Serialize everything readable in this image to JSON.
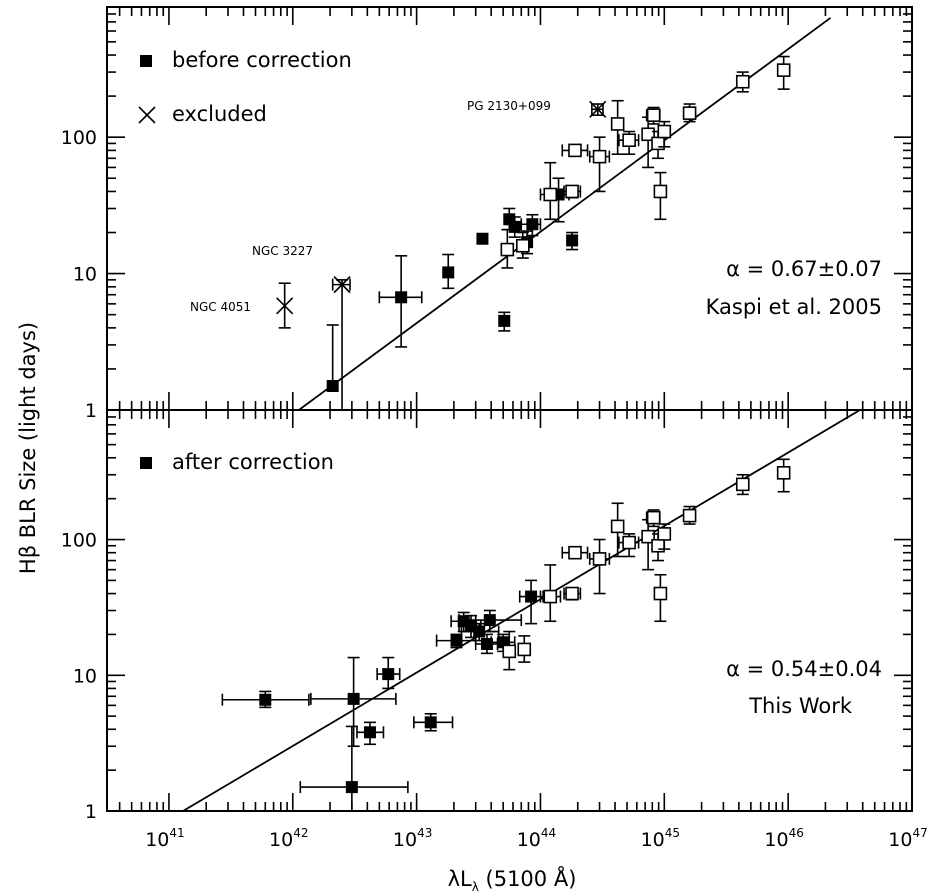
{
  "chart_data": [
    {
      "type": "scatter",
      "panel": "top",
      "x_scale": "log",
      "y_scale": "log",
      "xlim": [
        3e+40,
        1e+47
      ],
      "ylim": [
        1,
        900
      ],
      "legend": [
        {
          "marker": "filled-square",
          "label": "before correction"
        },
        {
          "marker": "cross",
          "label": "excluded"
        }
      ],
      "annotation_alpha": "α = 0.67±0.07",
      "annotation_ref": "Kaspi et al. 2005",
      "fit_line": {
        "x": [
          1.12e+42,
          2.2e+46
        ],
        "y": [
          1,
          750
        ]
      },
      "series": [
        {
          "marker": "filled-square",
          "points": [
            {
              "x": 2.1e+42,
              "y": 1.5,
              "ylo": 1.4,
              "yhi": 4.2
            },
            {
              "x": 7.5e+42,
              "y": 6.7,
              "ylo": 2.9,
              "yhi": 13.5,
              "xlo": 5e+42,
              "xhi": 1.1e+43
            },
            {
              "x": 1.8e+43,
              "y": 10.2,
              "ylo": 7.8,
              "yhi": 13.8
            },
            {
              "x": 3.4e+43,
              "y": 18.0
            },
            {
              "x": 5.1e+43,
              "y": 4.5,
              "ylo": 3.8,
              "yhi": 5.2
            },
            {
              "x": 5.6e+43,
              "y": 25.0,
              "ylo": 21.0,
              "yhi": 30.0
            },
            {
              "x": 6.2e+43,
              "y": 22.0,
              "ylo": 18.5,
              "yhi": 26.0
            },
            {
              "x": 7.8e+43,
              "y": 17.0,
              "ylo": 14.0,
              "yhi": 20.5
            },
            {
              "x": 8.6e+43,
              "y": 23.0,
              "ylo": 19.0,
              "yhi": 27.0,
              "xlo": 7e+43,
              "xhi": 1e+44
            },
            {
              "x": 1.4e+44,
              "y": 38.0,
              "ylo": 24.0,
              "yhi": 50.0,
              "xlo": 1.1e+44,
              "xhi": 1.7e+44
            },
            {
              "x": 1.8e+44,
              "y": 17.5,
              "ylo": 15.0,
              "yhi": 20.0
            }
          ]
        },
        {
          "marker": "open-square",
          "points": [
            {
              "x": 5.4e+43,
              "y": 15.0,
              "ylo": 11.0,
              "yhi": 21.0
            },
            {
              "x": 7.2e+43,
              "y": 16.0,
              "ylo": 13.0,
              "yhi": 20.0
            },
            {
              "x": 1.2e+44,
              "y": 38.0,
              "ylo": 25.0,
              "yhi": 65.0,
              "xlo": 1e+44,
              "xhi": 1.45e+44
            },
            {
              "x": 1.8e+44,
              "y": 40.0,
              "ylo": 36.0,
              "yhi": 44.0,
              "xlo": 1.55e+44,
              "xhi": 2.1e+44
            },
            {
              "x": 1.9e+44,
              "y": 80.0,
              "ylo": 75.0,
              "yhi": 85.0,
              "xlo": 1.5e+44,
              "xhi": 2.4e+44
            },
            {
              "x": 3e+44,
              "y": 72.0,
              "ylo": 40.0,
              "yhi": 100.0,
              "xlo": 2.5e+44,
              "xhi": 3.6e+44
            },
            {
              "x": 4.2e+44,
              "y": 125.0,
              "ylo": 75.0,
              "yhi": 185.0
            },
            {
              "x": 5.2e+44,
              "y": 95.0,
              "ylo": 75.0,
              "yhi": 110.0,
              "xlo": 4.3e+44,
              "xhi": 6.2e+44
            },
            {
              "x": 7.4e+44,
              "y": 105.0,
              "ylo": 60.0,
              "yhi": 140.0
            },
            {
              "x": 8.2e+44,
              "y": 145.0,
              "ylo": 125.0,
              "yhi": 165.0,
              "xlo": 7.2e+44,
              "xhi": 9.2e+44
            },
            {
              "x": 8.9e+44,
              "y": 90.0,
              "ylo": 70.0,
              "yhi": 110.0
            },
            {
              "x": 9.3e+44,
              "y": 40.0,
              "ylo": 25.0,
              "yhi": 55.0
            },
            {
              "x": 1e+45,
              "y": 110.0,
              "ylo": 85.0,
              "yhi": 130.0
            },
            {
              "x": 1.6e+45,
              "y": 150.0,
              "ylo": 130.0,
              "yhi": 175.0
            },
            {
              "x": 4.3e+45,
              "y": 255.0,
              "ylo": 215.0,
              "yhi": 300.0
            },
            {
              "x": 9.2e+45,
              "y": 310.0,
              "ylo": 225.0,
              "yhi": 390.0
            }
          ]
        },
        {
          "marker": "cross",
          "points": [
            {
              "label": "NGC 4051",
              "x": 8.6e+41,
              "y": 5.8,
              "ylo": 4.0,
              "yhi": 8.5
            },
            {
              "label": "NGC 3227",
              "x": 2.5e+42,
              "y": 8.3,
              "ylo": 1.0,
              "yhi": 9.0,
              "xlo": 2.1e+42,
              "xhi": 2.9e+42
            },
            {
              "label": "PG 2130+099",
              "x": 2.9e+44,
              "y": 160.0,
              "ylo": 145.0,
              "yhi": 175.0,
              "xlo": 2.6e+44,
              "xhi": 3.2e+44
            }
          ]
        }
      ]
    },
    {
      "type": "scatter",
      "panel": "bottom",
      "x_scale": "log",
      "y_scale": "log",
      "xlim": [
        3e+40,
        1e+47
      ],
      "ylim": [
        1,
        900
      ],
      "legend": [
        {
          "marker": "filled-square",
          "label": "after correction"
        }
      ],
      "annotation_alpha": "α = 0.54±0.04",
      "annotation_ref": "This Work",
      "fit_line": {
        "x": [
          1.3e+41,
          3.8e+46
        ],
        "y": [
          1,
          900
        ]
      },
      "series": [
        {
          "marker": "filled-square",
          "points": [
            {
              "x": 6e+41,
              "y": 6.6,
              "ylo": 5.8,
              "yhi": 7.6,
              "xlo": 2.7e+41,
              "xhi": 1.35e+42
            },
            {
              "x": 3e+42,
              "y": 1.5,
              "ylo": 1.0,
              "yhi": 4.2,
              "xlo": 1.15e+42,
              "xhi": 8.5e+42
            },
            {
              "x": 3.1e+42,
              "y": 6.7,
              "ylo": 3.0,
              "yhi": 13.5,
              "xlo": 1.4e+42,
              "xhi": 6.8e+42
            },
            {
              "x": 4.2e+42,
              "y": 3.8,
              "ylo": 3.1,
              "yhi": 4.5,
              "xlo": 3.3e+42,
              "xhi": 5.4e+42
            },
            {
              "x": 5.9e+42,
              "y": 10.2,
              "ylo": 8.0,
              "yhi": 13.5,
              "xlo": 4.8e+42,
              "xhi": 7.3e+42
            },
            {
              "x": 1.3e+43,
              "y": 4.5,
              "ylo": 3.9,
              "yhi": 5.2,
              "xlo": 9.5e+42,
              "xhi": 1.95e+43
            },
            {
              "x": 2.1e+43,
              "y": 18.0,
              "ylo": 16.0,
              "yhi": 20.0,
              "xlo": 1.45e+43,
              "xhi": 3e+43
            },
            {
              "x": 2.4e+43,
              "y": 25.0,
              "ylo": 21.0,
              "yhi": 29.0,
              "xlo": 1.9e+43,
              "xhi": 3e+43
            },
            {
              "x": 2.75e+43,
              "y": 23.0,
              "ylo": 19.0,
              "yhi": 27.5,
              "xlo": 2.2e+43,
              "xhi": 3.3e+43
            },
            {
              "x": 3.2e+43,
              "y": 21.0,
              "ylo": 18.0,
              "yhi": 24.0,
              "xlo": 2.3e+43,
              "xhi": 4.6e+43
            },
            {
              "x": 3.7e+43,
              "y": 17.0,
              "ylo": 14.5,
              "yhi": 20.0,
              "xlo": 3e+43,
              "xhi": 4.5e+43
            },
            {
              "x": 3.9e+43,
              "y": 25.5,
              "ylo": 21.0,
              "yhi": 30.0,
              "xlo": 2.2e+43,
              "xhi": 7e+43
            },
            {
              "x": 5e+43,
              "y": 17.5,
              "ylo": 15.0,
              "yhi": 20.0,
              "xlo": 4e+43,
              "xhi": 6.2e+43
            },
            {
              "x": 8.4e+43,
              "y": 38.0,
              "ylo": 24.0,
              "yhi": 50.0,
              "xlo": 6.8e+43,
              "xhi": 1.05e+44
            }
          ]
        },
        {
          "marker": "open-square",
          "points": [
            {
              "x": 5.6e+43,
              "y": 15.0,
              "ylo": 11.0,
              "yhi": 21.0
            },
            {
              "x": 7.4e+43,
              "y": 15.5,
              "ylo": 12.5,
              "yhi": 19.5
            },
            {
              "x": 1.2e+44,
              "y": 38.0,
              "ylo": 25.0,
              "yhi": 65.0,
              "xlo": 1e+44,
              "xhi": 1.45e+44
            },
            {
              "x": 1.8e+44,
              "y": 40.0,
              "ylo": 36.0,
              "yhi": 44.0,
              "xlo": 1.55e+44,
              "xhi": 2.1e+44
            },
            {
              "x": 1.9e+44,
              "y": 80.0,
              "ylo": 75.0,
              "yhi": 85.0,
              "xlo": 1.5e+44,
              "xhi": 2.4e+44
            },
            {
              "x": 3e+44,
              "y": 72.0,
              "ylo": 40.0,
              "yhi": 100.0,
              "xlo": 2.5e+44,
              "xhi": 3.6e+44
            },
            {
              "x": 4.2e+44,
              "y": 125.0,
              "ylo": 75.0,
              "yhi": 185.0
            },
            {
              "x": 5.2e+44,
              "y": 95.0,
              "ylo": 75.0,
              "yhi": 110.0,
              "xlo": 4.3e+44,
              "xhi": 6.2e+44
            },
            {
              "x": 7.4e+44,
              "y": 105.0,
              "ylo": 60.0,
              "yhi": 140.0
            },
            {
              "x": 8.2e+44,
              "y": 145.0,
              "ylo": 125.0,
              "yhi": 165.0,
              "xlo": 7.2e+44,
              "xhi": 9.2e+44
            },
            {
              "x": 8.9e+44,
              "y": 90.0,
              "ylo": 70.0,
              "yhi": 110.0
            },
            {
              "x": 9.3e+44,
              "y": 40.0,
              "ylo": 25.0,
              "yhi": 55.0
            },
            {
              "x": 1e+45,
              "y": 110.0,
              "ylo": 85.0,
              "yhi": 130.0
            },
            {
              "x": 1.6e+45,
              "y": 150.0,
              "ylo": 130.0,
              "yhi": 175.0
            },
            {
              "x": 4.3e+45,
              "y": 255.0,
              "ylo": 215.0,
              "yhi": 300.0
            },
            {
              "x": 9.2e+45,
              "y": 310.0,
              "ylo": 225.0,
              "yhi": 390.0
            }
          ]
        }
      ]
    }
  ],
  "axes": {
    "ylabel": "Hβ BLR Size (light days)",
    "xlabel_main": "λL",
    "xlabel_sub": "λ",
    "xlabel_tail": " (5100 Å)",
    "x_tick_base": "10",
    "x_tick_exponents": [
      "41",
      "42",
      "43",
      "44",
      "45",
      "46",
      "47"
    ],
    "y_tick_labels": [
      "1",
      "10",
      "100"
    ]
  }
}
